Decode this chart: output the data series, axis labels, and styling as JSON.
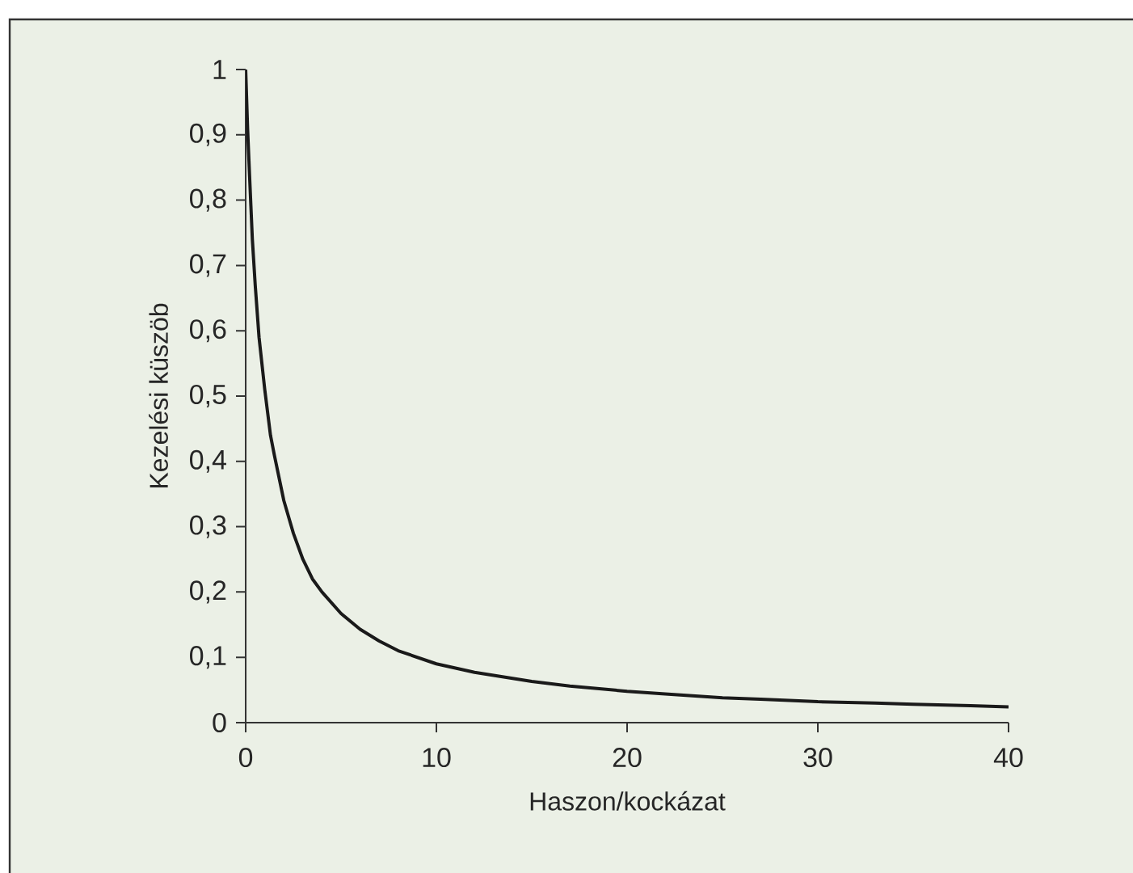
{
  "chart_data": {
    "type": "line",
    "xlabel": "Haszon/kockázat",
    "ylabel": "Kezelési küszöb",
    "x": [
      0,
      0.1,
      0.2,
      0.35,
      0.5,
      0.7,
      1,
      1.3,
      1.5,
      2,
      2.5,
      3,
      3.5,
      4,
      5,
      6,
      7,
      8,
      10,
      12,
      15,
      17,
      20,
      22,
      25,
      27,
      30,
      33,
      35,
      38,
      40
    ],
    "series": [
      {
        "color": "#1a1a1a",
        "values": [
          1,
          0.91,
          0.84,
          0.74,
          0.67,
          0.59,
          0.51,
          0.44,
          0.41,
          0.34,
          0.29,
          0.25,
          0.22,
          0.2,
          0.167,
          0.143,
          0.125,
          0.11,
          0.09,
          0.077,
          0.063,
          0.056,
          0.048,
          0.044,
          0.038,
          0.036,
          0.032,
          0.03,
          0.028,
          0.026,
          0.024
        ]
      }
    ],
    "xlim": [
      0,
      40
    ],
    "xticks": [
      0,
      10,
      20,
      30,
      40
    ],
    "ylim": [
      0,
      1
    ],
    "yticks": [
      0,
      {
        "value": 0.1,
        "label": "0,1"
      },
      {
        "value": 0.2,
        "label": "0,2"
      },
      {
        "value": 0.3,
        "label": "0,3"
      },
      {
        "value": 0.4,
        "label": "0,4"
      },
      {
        "value": 0.5,
        "label": "0,5"
      },
      {
        "value": 0.6,
        "label": "0,6"
      },
      {
        "value": 0.7,
        "label": "0,7"
      },
      {
        "value": 0.8,
        "label": "0,8"
      },
      {
        "value": 0.9,
        "label": "0,9"
      },
      1
    ],
    "grid": false,
    "marker": "none",
    "line_style": "solid"
  }
}
